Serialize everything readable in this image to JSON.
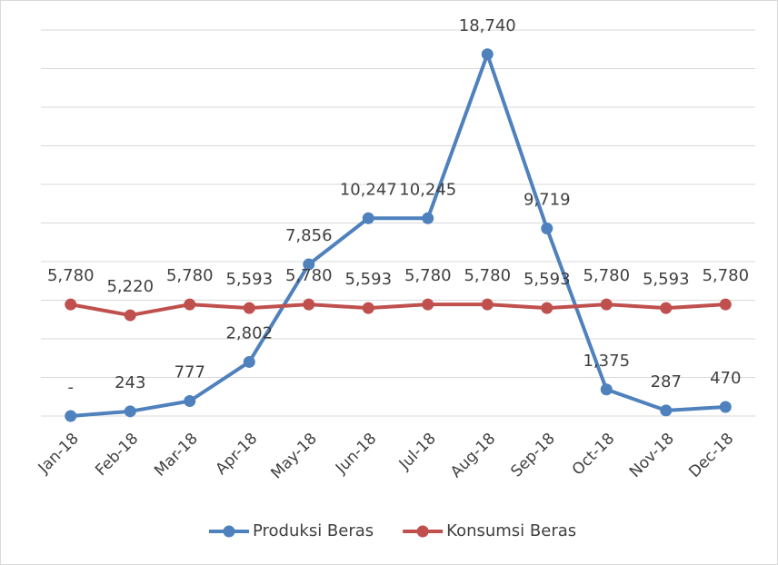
{
  "chart_data": {
    "type": "line",
    "categories": [
      "Jan-18",
      "Feb-18",
      "Mar-18",
      "Apr-18",
      "May-18",
      "Jun-18",
      "Jul-18",
      "Aug-18",
      "Sep-18",
      "Oct-18",
      "Nov-18",
      "Dec-18"
    ],
    "series": [
      {
        "name": "Produksi Beras",
        "color": "#4f81bd",
        "values": [
          0,
          243,
          777,
          2802,
          7856,
          10247,
          10245,
          18740,
          9719,
          1375,
          287,
          470
        ],
        "value_labels": [
          "-",
          "243",
          "777",
          "2,802",
          "7,856",
          "10,247",
          "10,245",
          "18,740",
          "9,719",
          "1,375",
          "287",
          "470"
        ]
      },
      {
        "name": "Konsumsi Beras",
        "color": "#c0504d",
        "values": [
          5780,
          5220,
          5780,
          5593,
          5780,
          5593,
          5780,
          5780,
          5593,
          5780,
          5593,
          5780
        ],
        "value_labels": [
          "5,780",
          "5,220",
          "5,780",
          "5,593",
          "5,780",
          "5,593",
          "5,780",
          "5,780",
          "5,593",
          "5,780",
          "5,593",
          "5,780"
        ]
      }
    ],
    "ylim": [
      0,
      20000
    ],
    "yticks": [
      0,
      2000,
      4000,
      6000,
      8000,
      10000,
      12000,
      14000,
      16000,
      18000,
      20000
    ],
    "grid": true,
    "legend": "bottom"
  }
}
